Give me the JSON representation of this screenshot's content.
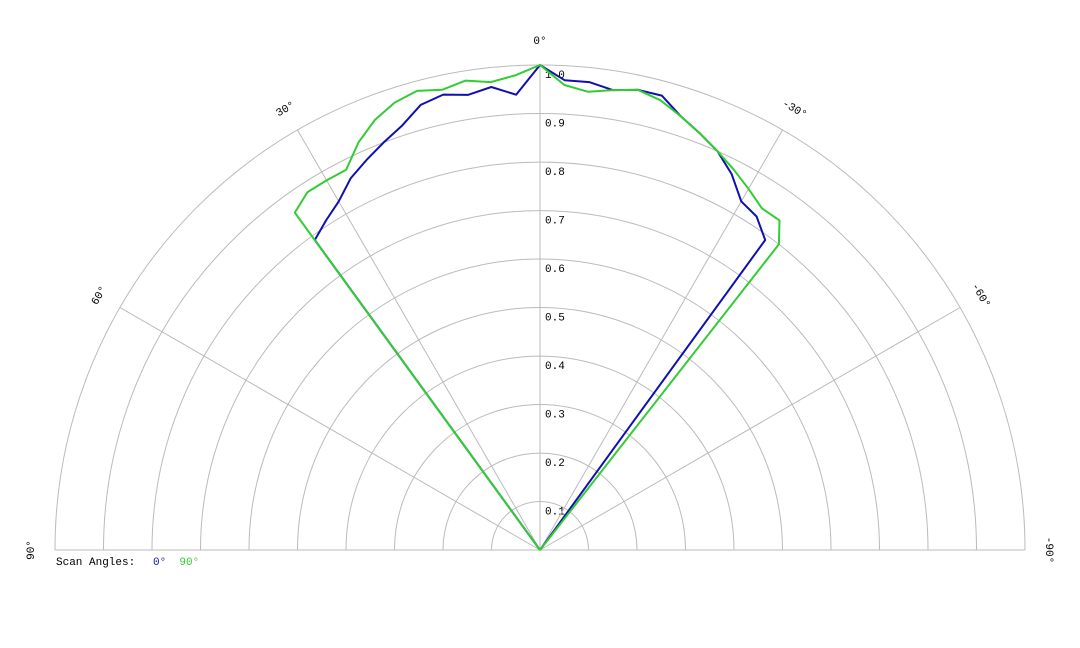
{
  "chart_data": {
    "type": "polar",
    "x": [
      37,
      36,
      33,
      30,
      27,
      24,
      21,
      18,
      15,
      12,
      9,
      6,
      3,
      0,
      -3,
      -6,
      -9,
      -12,
      -15,
      -18,
      -21,
      -24,
      -27,
      -30,
      -33,
      -36,
      -38,
      -39
    ],
    "series": [
      {
        "name": "0°",
        "color": "#1010b0",
        "values": [
          0,
          0.79,
          0.81,
          0.83,
          0.86,
          0.88,
          0.9,
          0.92,
          0.95,
          0.96,
          0.95,
          0.96,
          0.94,
          1.0,
          0.97,
          0.97,
          0.96,
          0.97,
          0.97,
          0.94,
          0.92,
          0.9,
          0.87,
          0.83,
          0.82,
          0.79,
          0,
          0
        ]
      },
      {
        "name": "90°",
        "color": "#33cc33",
        "values": [
          0,
          0.86,
          0.88,
          0.88,
          0.88,
          0.92,
          0.95,
          0.97,
          0.98,
          0.97,
          0.98,
          0.97,
          0.98,
          1.0,
          0.96,
          0.95,
          0.96,
          0.97,
          0.96,
          0.94,
          0.92,
          0.9,
          0.88,
          0.86,
          0.84,
          0.84,
          0.8,
          0
        ]
      }
    ],
    "xlim": [
      90,
      -90
    ],
    "xticks": [
      {
        "value": 90,
        "label": "90°"
      },
      {
        "value": 60,
        "label": "60°"
      },
      {
        "value": 30,
        "label": "30°"
      },
      {
        "value": 0,
        "label": "0°"
      },
      {
        "value": -30,
        "label": "-30°"
      },
      {
        "value": -60,
        "label": "-60°"
      },
      {
        "value": -90,
        "label": "-90°"
      }
    ],
    "ylim": [
      0,
      1
    ],
    "yticks": [
      0.1,
      0.2,
      0.3,
      0.4,
      0.5,
      0.6,
      0.7,
      0.8,
      0.9,
      {
        "value": 1,
        "label": "1.0"
      }
    ],
    "legend_title": "Scan Angles:",
    "grid": true
  }
}
